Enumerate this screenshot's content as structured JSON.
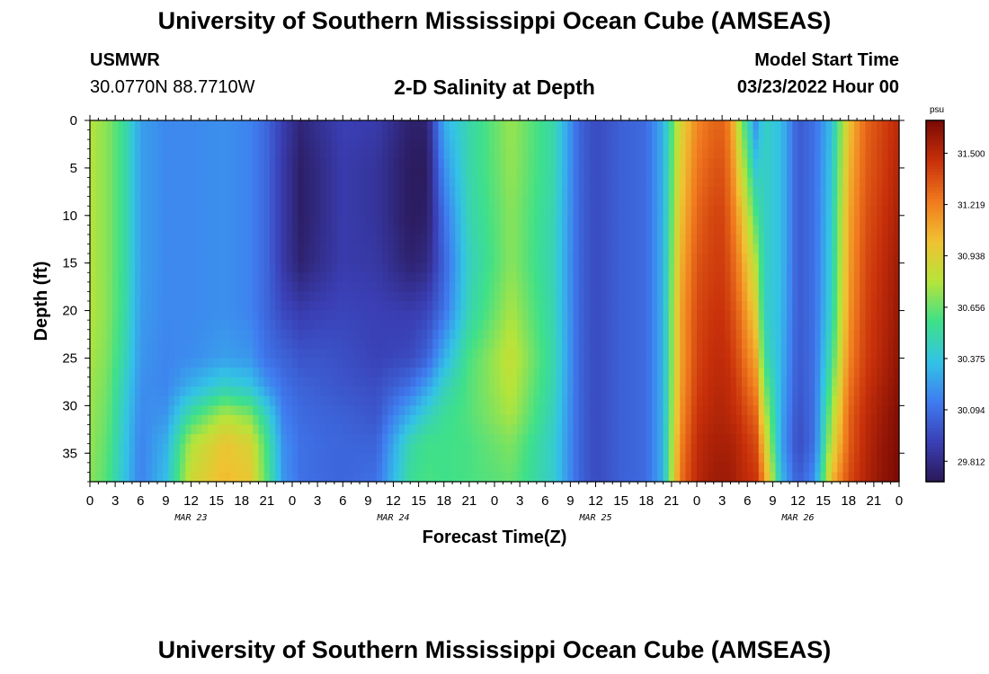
{
  "header": {
    "title": "University of Southern Mississippi Ocean Cube (AMSEAS)",
    "station": "USMWR",
    "coords": "30.0770N  88.7710W",
    "subtitle": "2-D Salinity at Depth",
    "start_label": "Model Start Time",
    "start_value": "03/23/2022 Hour 00"
  },
  "footer": {
    "title": "University of Southern Mississippi Ocean Cube (AMSEAS)"
  },
  "chart_data": {
    "type": "heatmap",
    "title": "2-D Salinity at Depth",
    "xlabel": "Forecast Time(Z)",
    "ylabel": "Depth (ft)",
    "x_range_hours": [
      0,
      96
    ],
    "y_range_ft": [
      0,
      38
    ],
    "x_tick_labels": [
      "0",
      "3",
      "6",
      "9",
      "12",
      "15",
      "18",
      "21",
      "0",
      "3",
      "6",
      "9",
      "12",
      "15",
      "18",
      "21",
      "0",
      "3",
      "6",
      "9",
      "12",
      "15",
      "18",
      "21",
      "0",
      "3",
      "6",
      "9",
      "12",
      "15",
      "18",
      "21",
      "0"
    ],
    "y_ticks": [
      0,
      5,
      10,
      15,
      20,
      25,
      30,
      35
    ],
    "day_labels": [
      {
        "hour": 12,
        "label": "MAR 23"
      },
      {
        "hour": 36,
        "label": "MAR 24"
      },
      {
        "hour": 60,
        "label": "MAR 25"
      },
      {
        "hour": 84,
        "label": "MAR 26"
      }
    ],
    "colorbar": {
      "unit": "psu",
      "ticks": [
        "31.500",
        "31.219",
        "30.938",
        "30.656",
        "30.375",
        "30.094",
        "29.812"
      ],
      "tick_values": [
        31.5,
        31.219,
        30.938,
        30.656,
        30.375,
        30.094,
        29.812
      ],
      "range": [
        29.7,
        31.68
      ],
      "colors": [
        "#2a1856",
        "#3a3fb5",
        "#3f7cf0",
        "#33c3e6",
        "#3ee08a",
        "#b6e43a",
        "#f0c232",
        "#f07a1e",
        "#c8300a",
        "#7a0a04"
      ]
    },
    "time_hours": [
      0,
      2,
      4,
      6,
      9,
      12,
      16,
      19,
      21,
      23,
      25,
      27,
      30,
      34,
      38,
      40,
      42,
      45,
      50,
      55,
      58,
      60,
      63,
      66,
      68,
      70,
      72,
      74,
      75,
      76,
      77,
      79,
      80,
      82,
      84,
      86,
      88,
      90,
      92,
      94,
      96
    ],
    "depth_ft": [
      0,
      5,
      10,
      15,
      20,
      25,
      28,
      31,
      34,
      38
    ],
    "salinity_psu": [
      [
        30.8,
        30.8,
        30.8,
        30.8,
        30.8,
        30.78,
        30.76,
        30.75,
        30.74,
        30.72
      ],
      [
        30.72,
        30.72,
        30.72,
        30.72,
        30.72,
        30.7,
        30.68,
        30.66,
        30.64,
        30.62
      ],
      [
        30.55,
        30.55,
        30.55,
        30.55,
        30.54,
        30.5,
        30.45,
        30.42,
        30.4,
        30.38
      ],
      [
        30.25,
        30.25,
        30.25,
        30.25,
        30.24,
        30.22,
        30.2,
        30.18,
        30.16,
        30.15
      ],
      [
        30.18,
        30.18,
        30.18,
        30.18,
        30.18,
        30.17,
        30.17,
        30.22,
        30.3,
        30.35
      ],
      [
        30.18,
        30.18,
        30.18,
        30.18,
        30.18,
        30.19,
        30.3,
        30.55,
        30.8,
        30.88
      ],
      [
        30.2,
        30.2,
        30.2,
        30.2,
        30.2,
        30.25,
        30.45,
        30.8,
        31.0,
        31.05
      ],
      [
        30.16,
        30.16,
        30.16,
        30.16,
        30.16,
        30.22,
        30.38,
        30.7,
        30.92,
        30.98
      ],
      [
        30.06,
        30.06,
        30.06,
        30.06,
        30.06,
        30.1,
        30.22,
        30.45,
        30.58,
        30.62
      ],
      [
        29.9,
        29.88,
        29.88,
        29.88,
        29.95,
        30.05,
        30.1,
        30.15,
        30.2,
        30.22
      ],
      [
        29.78,
        29.74,
        29.74,
        29.76,
        29.9,
        30.0,
        30.05,
        30.08,
        30.1,
        30.1
      ],
      [
        29.84,
        29.8,
        29.8,
        29.82,
        29.92,
        30.0,
        30.03,
        30.06,
        30.08,
        30.08
      ],
      [
        29.92,
        29.9,
        29.9,
        29.9,
        29.94,
        29.98,
        30.0,
        30.04,
        30.06,
        30.06
      ],
      [
        29.9,
        29.86,
        29.86,
        29.88,
        29.92,
        29.93,
        29.97,
        30.0,
        30.05,
        30.1
      ],
      [
        29.75,
        29.72,
        29.72,
        29.76,
        29.9,
        29.96,
        30.1,
        30.3,
        30.5,
        30.55
      ],
      [
        29.76,
        29.72,
        29.74,
        29.8,
        29.94,
        30.05,
        30.25,
        30.45,
        30.58,
        30.6
      ],
      [
        30.3,
        30.2,
        30.1,
        30.05,
        30.1,
        30.3,
        30.45,
        30.55,
        30.58,
        30.58
      ],
      [
        30.5,
        30.5,
        30.48,
        30.45,
        30.48,
        30.6,
        30.62,
        30.62,
        30.6,
        30.6
      ],
      [
        30.75,
        30.74,
        30.72,
        30.72,
        30.78,
        30.85,
        30.82,
        30.78,
        30.7,
        30.65
      ],
      [
        30.5,
        30.5,
        30.48,
        30.47,
        30.48,
        30.5,
        30.48,
        30.45,
        30.42,
        30.42
      ],
      [
        30.06,
        30.06,
        30.06,
        30.06,
        30.06,
        30.06,
        30.06,
        30.06,
        30.06,
        30.06
      ],
      [
        29.96,
        29.96,
        29.96,
        29.96,
        29.96,
        29.96,
        29.96,
        29.96,
        29.96,
        29.96
      ],
      [
        30.04,
        30.04,
        30.04,
        30.04,
        30.04,
        30.04,
        30.04,
        30.04,
        30.04,
        30.04
      ],
      [
        30.08,
        30.08,
        30.08,
        30.08,
        30.08,
        30.08,
        30.08,
        30.08,
        30.08,
        30.08
      ],
      [
        30.3,
        30.3,
        30.3,
        30.3,
        30.3,
        30.3,
        30.3,
        30.3,
        30.3,
        30.3
      ],
      [
        30.9,
        30.95,
        31.0,
        31.05,
        31.1,
        31.1,
        31.12,
        31.15,
        31.2,
        31.25
      ],
      [
        31.2,
        31.25,
        31.3,
        31.35,
        31.38,
        31.4,
        31.42,
        31.45,
        31.48,
        31.5
      ],
      [
        31.3,
        31.35,
        31.4,
        31.42,
        31.45,
        31.48,
        31.5,
        31.52,
        31.55,
        31.58
      ],
      [
        31.3,
        31.35,
        31.4,
        31.42,
        31.45,
        31.48,
        31.5,
        31.52,
        31.55,
        31.58
      ],
      [
        31.2,
        31.25,
        31.3,
        31.35,
        31.4,
        31.45,
        31.48,
        31.5,
        31.55,
        31.58
      ],
      [
        30.8,
        30.95,
        31.1,
        31.2,
        31.28,
        31.35,
        31.4,
        31.45,
        31.5,
        31.52
      ],
      [
        30.2,
        30.4,
        30.6,
        30.8,
        30.95,
        31.1,
        31.2,
        31.3,
        31.38,
        31.45
      ],
      [
        30.45,
        30.45,
        30.45,
        30.45,
        30.45,
        30.55,
        30.7,
        30.85,
        31.0,
        31.2
      ],
      [
        30.35,
        30.35,
        30.35,
        30.35,
        30.34,
        30.32,
        30.3,
        30.28,
        30.26,
        30.35
      ],
      [
        30.02,
        30.02,
        30.02,
        30.02,
        30.02,
        30.01,
        30.0,
        29.98,
        29.96,
        30.02
      ],
      [
        30.1,
        30.1,
        30.1,
        30.1,
        30.1,
        30.1,
        30.1,
        30.1,
        30.1,
        30.2
      ],
      [
        30.35,
        30.38,
        30.4,
        30.42,
        30.45,
        30.55,
        30.65,
        30.75,
        30.85,
        31.05
      ],
      [
        31.0,
        31.05,
        31.1,
        31.12,
        31.15,
        31.2,
        31.25,
        31.3,
        31.32,
        31.38
      ],
      [
        31.3,
        31.32,
        31.35,
        31.38,
        31.4,
        31.42,
        31.45,
        31.48,
        31.5,
        31.52
      ],
      [
        31.4,
        31.42,
        31.45,
        31.48,
        31.5,
        31.52,
        31.55,
        31.58,
        31.6,
        31.62
      ],
      [
        31.5,
        31.52,
        31.55,
        31.58,
        31.6,
        31.62,
        31.64,
        31.66,
        31.67,
        31.68
      ]
    ]
  }
}
